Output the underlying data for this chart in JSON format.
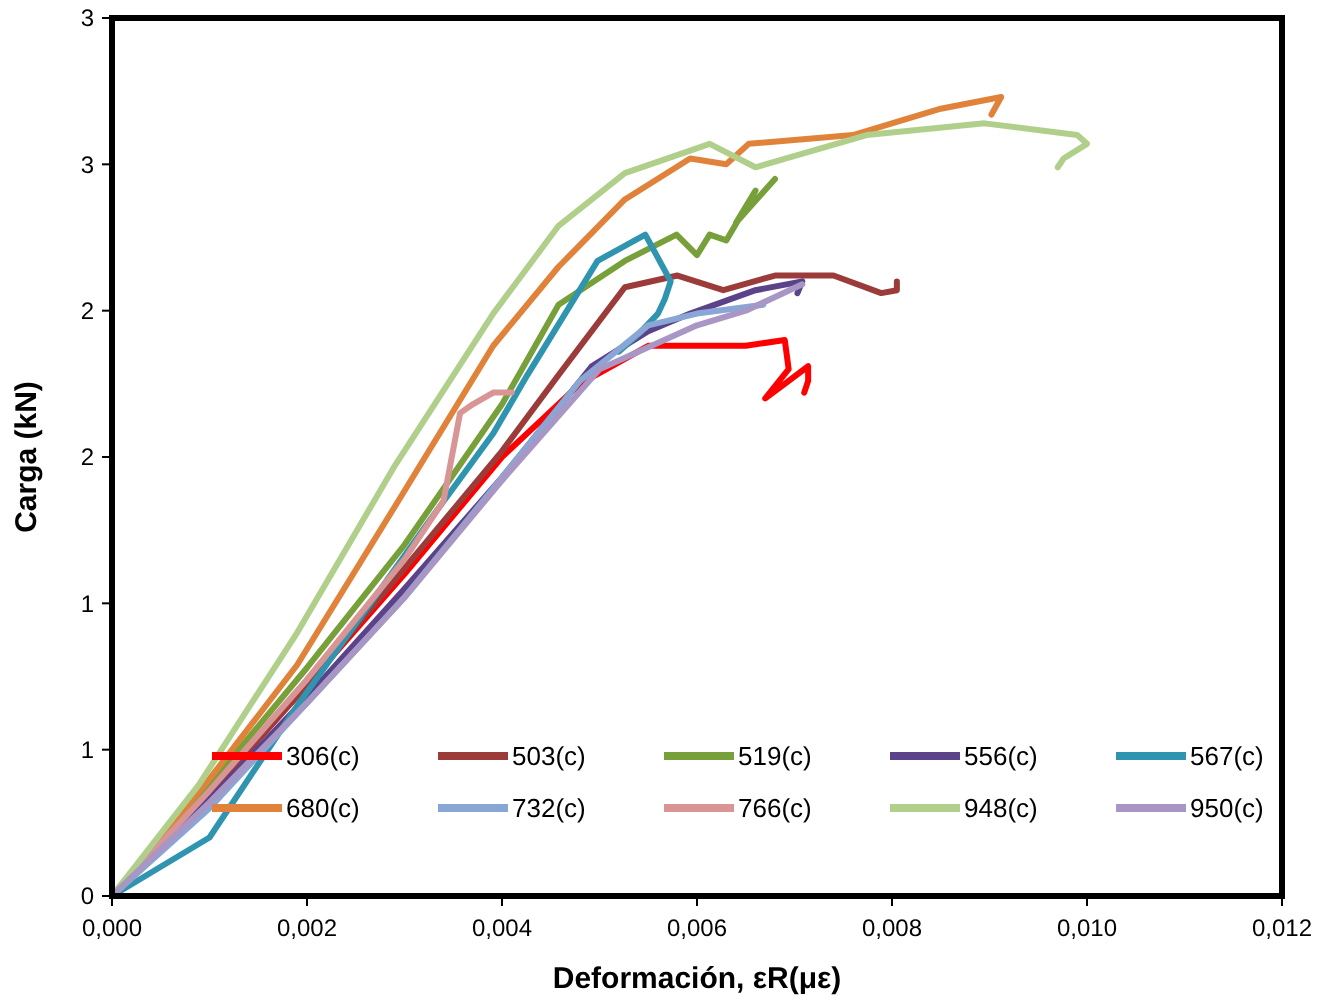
{
  "chart_data": {
    "type": "line",
    "xlabel": "Deformación, εR(με)",
    "ylabel": "Carga  (kN)",
    "xlim": [
      0,
      0.012
    ],
    "xticks": [
      {
        "value": 0,
        "label": "0,000"
      },
      {
        "value": 0.002,
        "label": "0,002"
      },
      {
        "value": 0.004,
        "label": "0,004"
      },
      {
        "value": 0.006,
        "label": "0,006"
      },
      {
        "value": 0.008,
        "label": "0,008"
      },
      {
        "value": 0.01,
        "label": "0,010"
      },
      {
        "value": 0.012,
        "label": "0,012"
      }
    ],
    "ylim": [
      0,
      3
    ],
    "yticks": [
      0,
      {
        "value": 0.5,
        "label": "1"
      },
      1,
      {
        "value": 1.5,
        "label": "2"
      },
      2,
      {
        "value": 2.5,
        "label": "3"
      },
      3
    ],
    "grid": false,
    "legend": "bottom",
    "line_style": "solid",
    "series": [
      {
        "name": "306(c)",
        "color": "#ff0000",
        "x": [
          0,
          0.001,
          0.002,
          0.003,
          0.004,
          0.0048,
          0.0055,
          0.0065,
          0.0069,
          0.00694,
          0.0067,
          0.0069,
          0.00714,
          0.00714,
          0.0071
        ],
        "values": [
          0,
          0.35,
          0.72,
          1.1,
          1.5,
          1.75,
          1.88,
          1.88,
          1.9,
          1.8,
          1.7,
          1.75,
          1.81,
          1.76,
          1.72
        ]
      },
      {
        "name": "503(c)",
        "color": "#9b3b3a",
        "x": [
          0,
          0.001,
          0.002,
          0.003,
          0.004,
          0.00458,
          0.00526,
          0.0058,
          0.00627,
          0.0068,
          0.0074,
          0.00789,
          0.00805,
          0.00805
        ],
        "values": [
          0,
          0.35,
          0.72,
          1.12,
          1.52,
          1.78,
          2.08,
          2.12,
          2.07,
          2.12,
          2.12,
          2.06,
          2.07,
          2.1
        ]
      },
      {
        "name": "519(c)",
        "color": "#77a03a",
        "x": [
          0,
          0.001,
          0.002,
          0.003,
          0.004,
          0.00458,
          0.00526,
          0.00579,
          0.006,
          0.00613,
          0.0063,
          0.0066,
          0.0064,
          0.0068
        ],
        "values": [
          0,
          0.38,
          0.78,
          1.2,
          1.68,
          2.02,
          2.17,
          2.26,
          2.19,
          2.26,
          2.24,
          2.41,
          2.3,
          2.45
        ]
      },
      {
        "name": "556(c)",
        "color": "#5b4289",
        "x": [
          0,
          0.001,
          0.002,
          0.003,
          0.004,
          0.00492,
          0.0055,
          0.00593,
          0.0066,
          0.00708,
          0.00703
        ],
        "values": [
          0,
          0.33,
          0.68,
          1.05,
          1.43,
          1.81,
          1.93,
          1.99,
          2.07,
          2.1,
          2.06
        ]
      },
      {
        "name": "567(c)",
        "color": "#2e94b0",
        "x": [
          0,
          0.001,
          0.0019,
          0.00325,
          0.00391,
          0.00426,
          0.00498,
          0.00547,
          0.00573,
          0.00567,
          0.0056,
          0.0054,
          0.0052
        ],
        "values": [
          0,
          0.2,
          0.65,
          1.28,
          1.58,
          1.78,
          2.17,
          2.26,
          2.1,
          2.04,
          1.99,
          1.92,
          1.86
        ]
      },
      {
        "name": "680(c)",
        "color": "#e0823a",
        "x": [
          0,
          0.001,
          0.0019,
          0.0029,
          0.00391,
          0.00458,
          0.00526,
          0.00593,
          0.0063,
          0.00653,
          0.0076,
          0.0085,
          0.00912,
          0.00902
        ],
        "values": [
          0,
          0.4,
          0.79,
          1.33,
          1.88,
          2.15,
          2.38,
          2.52,
          2.5,
          2.57,
          2.6,
          2.69,
          2.73,
          2.67
        ]
      },
      {
        "name": "732(c)",
        "color": "#8aa6d4",
        "x": [
          0,
          0.001,
          0.002,
          0.003,
          0.004,
          0.0048,
          0.0055,
          0.006,
          0.00668
        ],
        "values": [
          0,
          0.3,
          0.66,
          1.02,
          1.43,
          1.76,
          1.95,
          1.99,
          2.02
        ]
      },
      {
        "name": "766(c)",
        "color": "#d99595",
        "x": [
          0,
          0.001,
          0.002,
          0.003,
          0.0034,
          0.00357,
          0.0037,
          0.00391,
          0.0041
        ],
        "values": [
          0,
          0.36,
          0.74,
          1.15,
          1.35,
          1.65,
          1.68,
          1.72,
          1.72
        ]
      },
      {
        "name": "948(c)",
        "color": "#b0cf8a",
        "x": [
          0,
          0.00089,
          0.0019,
          0.0029,
          0.00391,
          0.00458,
          0.00526,
          0.00613,
          0.0066,
          0.00774,
          0.00895,
          0.0099,
          0.01,
          0.00976,
          0.0097
        ],
        "values": [
          0,
          0.38,
          0.9,
          1.47,
          1.99,
          2.29,
          2.47,
          2.57,
          2.49,
          2.6,
          2.64,
          2.6,
          2.57,
          2.52,
          2.49
        ]
      },
      {
        "name": "950(c)",
        "color": "#a896c4",
        "x": [
          0,
          0.001,
          0.002,
          0.003,
          0.004,
          0.005,
          0.006,
          0.0065,
          0.00708
        ],
        "values": [
          0,
          0.32,
          0.66,
          1.02,
          1.42,
          1.8,
          1.95,
          2.0,
          2.09
        ]
      }
    ]
  }
}
